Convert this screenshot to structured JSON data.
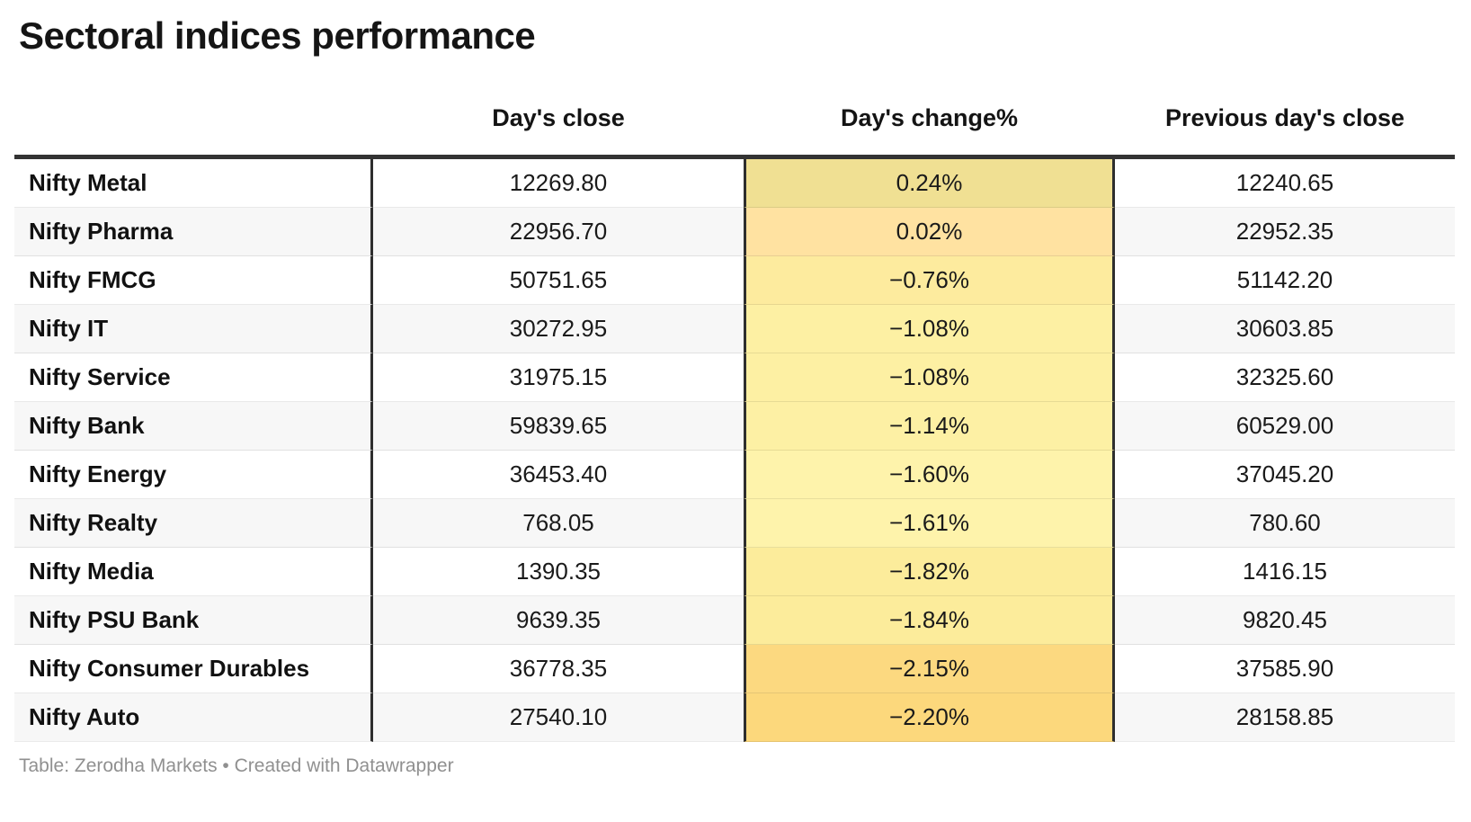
{
  "title": "Sectoral indices performance",
  "footer": {
    "text": "Table: Zerodha Markets • Created with Datawrapper"
  },
  "colors": {
    "table_border": "#333333",
    "column_divider": "#2e2e2e",
    "row_stripe": "#f7f7f7",
    "footer_text": "#909090"
  },
  "chart_data": {
    "type": "table",
    "title": "Sectoral indices performance",
    "columns": [
      "",
      "Day's close",
      "Day's change%",
      "Previous day's close"
    ],
    "rows": [
      {
        "name": "Nifty Metal",
        "close": "12269.80",
        "change": "0.24%",
        "prev": "12240.65",
        "change_bg": "#f0e093"
      },
      {
        "name": "Nifty Pharma",
        "close": "22956.70",
        "change": "0.02%",
        "prev": "22952.35",
        "change_bg": "#ffe2a1"
      },
      {
        "name": "Nifty FMCG",
        "close": "50751.65",
        "change": "−0.76%",
        "prev": "51142.20",
        "change_bg": "#fdeb9e"
      },
      {
        "name": "Nifty IT",
        "close": "30272.95",
        "change": "−1.08%",
        "prev": "30603.85",
        "change_bg": "#fdf0a3"
      },
      {
        "name": "Nifty Service",
        "close": "31975.15",
        "change": "−1.08%",
        "prev": "32325.60",
        "change_bg": "#fdf0a3"
      },
      {
        "name": "Nifty Bank",
        "close": "59839.65",
        "change": "−1.14%",
        "prev": "60529.00",
        "change_bg": "#fdf0a4"
      },
      {
        "name": "Nifty Energy",
        "close": "36453.40",
        "change": "−1.60%",
        "prev": "37045.20",
        "change_bg": "#fef3ab"
      },
      {
        "name": "Nifty Realty",
        "close": "768.05",
        "change": "−1.61%",
        "prev": "780.60",
        "change_bg": "#fef3ab"
      },
      {
        "name": "Nifty Media",
        "close": "1390.35",
        "change": "−1.82%",
        "prev": "1416.15",
        "change_bg": "#fcec9b"
      },
      {
        "name": "Nifty PSU Bank",
        "close": "9639.35",
        "change": "−1.84%",
        "prev": "9820.45",
        "change_bg": "#fcec9b"
      },
      {
        "name": "Nifty Consumer Durables",
        "close": "36778.35",
        "change": "−2.15%",
        "prev": "37585.90",
        "change_bg": "#fcd980"
      },
      {
        "name": "Nifty Auto",
        "close": "27540.10",
        "change": "−2.20%",
        "prev": "28158.85",
        "change_bg": "#fcd87c"
      }
    ]
  }
}
